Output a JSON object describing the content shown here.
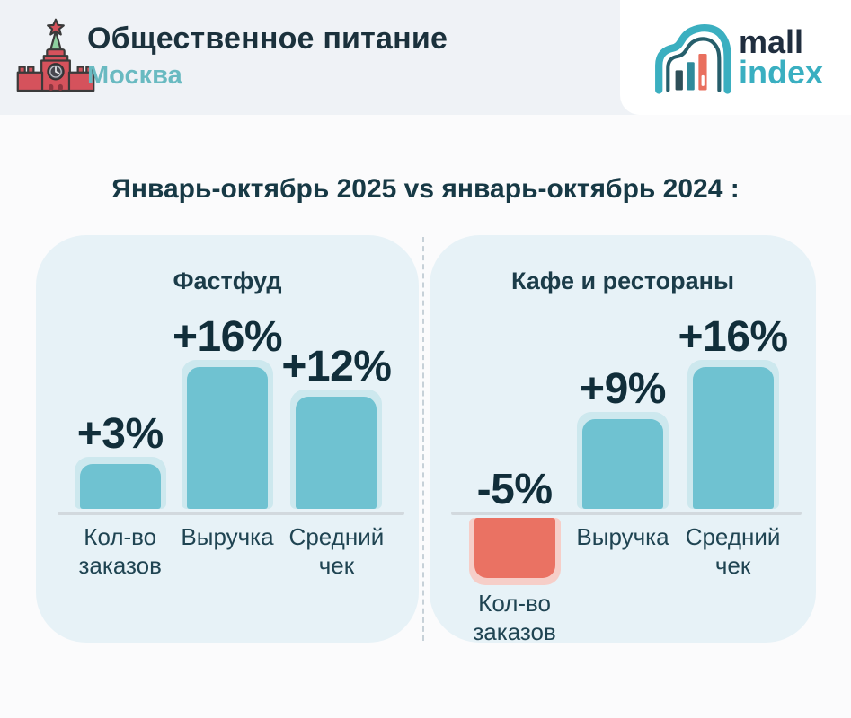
{
  "header": {
    "title": "Общественное питание",
    "city": "Москва",
    "logo": {
      "line1": "mall",
      "line2": "index"
    }
  },
  "comparison_title": "Январь-октябрь 2025 vs январь-октябрь 2024 :",
  "colors": {
    "positive_bar": "#6FC2D1",
    "positive_halo": "#CDE8EE",
    "negative_bar": "#EA7263",
    "negative_halo": "#F6CEC8",
    "dark_navy": "#16333F",
    "accent_teal": "#3AAFC1"
  },
  "chart_data": [
    {
      "type": "bar",
      "title": "Фастфуд",
      "categories": [
        "Кол-во заказов",
        "Выручка",
        "Средний чек"
      ],
      "values": [
        3,
        16,
        12
      ],
      "value_labels": [
        "+3%",
        "+16%",
        "+12%"
      ],
      "unit": "percent change vs previous year",
      "baseline": 0,
      "grid": false,
      "legend": false
    },
    {
      "type": "bar",
      "title": "Кафе и рестораны",
      "categories": [
        "Кол-во заказов",
        "Выручка",
        "Средний чек"
      ],
      "values": [
        -5,
        9,
        16
      ],
      "value_labels": [
        "-5%",
        "+9%",
        "+16%"
      ],
      "unit": "percent change vs previous year",
      "baseline": 0,
      "grid": false,
      "legend": false
    }
  ]
}
